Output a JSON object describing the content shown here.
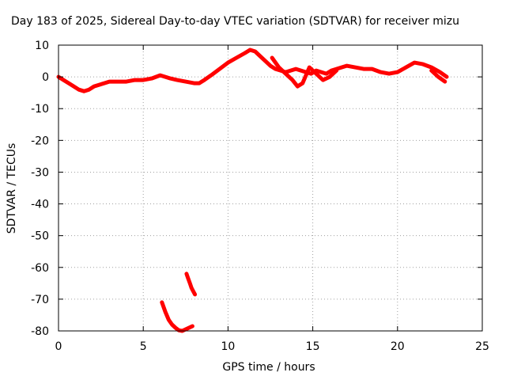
{
  "chart_data": {
    "type": "line",
    "title": "Day 183 of 2025, Sidereal Day-to-day VTEC variation (SDTVAR) for receiver mizu",
    "xlabel": "GPS time / hours",
    "ylabel": "SDTVAR / TECUs",
    "xlim": [
      0,
      25
    ],
    "ylim": [
      -80,
      10
    ],
    "xticks": [
      0,
      5,
      10,
      15,
      20,
      25
    ],
    "yticks": [
      10,
      0,
      -10,
      -20,
      -30,
      -40,
      -50,
      -60,
      -70,
      -80
    ],
    "grid": true,
    "series": [
      {
        "name": "main-trace",
        "color": "#ff0000",
        "x": [
          0.0,
          0.3,
          0.6,
          0.9,
          1.2,
          1.5,
          1.8,
          2.1,
          2.4,
          2.7,
          3.0,
          3.5,
          4.0,
          4.5,
          5.0,
          5.5,
          6.0,
          6.3,
          6.6,
          7.0,
          7.5,
          8.0,
          8.3,
          8.6,
          9.0,
          9.5,
          10.0,
          10.5,
          11.0,
          11.3,
          11.6,
          11.9,
          12.2,
          12.5,
          12.8,
          13.1,
          13.4,
          13.7,
          14.0,
          14.3,
          14.6,
          14.9,
          15.2,
          15.5,
          15.8,
          16.1,
          16.4,
          16.7,
          17.0,
          17.5,
          18.0,
          18.5,
          19.0,
          19.5,
          20.0,
          20.5,
          21.0,
          21.5,
          22.0,
          22.5,
          22.9
        ],
        "y": [
          0,
          -1,
          -2,
          -3,
          -4,
          -4.5,
          -4,
          -3,
          -2.5,
          -2,
          -1.5,
          -1.5,
          -1.5,
          -1,
          -1,
          -0.5,
          0.5,
          0,
          -0.5,
          -1,
          -1.5,
          -2,
          -2,
          -1,
          0.5,
          2.5,
          4.5,
          6,
          7.5,
          8.5,
          8,
          6.5,
          5,
          3.5,
          2.5,
          2,
          1.5,
          2,
          2.5,
          2,
          1.5,
          1,
          2,
          1.5,
          1,
          2,
          2.5,
          3,
          3.5,
          3,
          2.5,
          2.5,
          1.5,
          1,
          1.5,
          3,
          4.5,
          4,
          3,
          1.5,
          0
        ]
      },
      {
        "name": "upper-band",
        "color": "#ff0000",
        "x": [
          12.6,
          13.0,
          13.4,
          13.8,
          14.1,
          14.4,
          14.8,
          15.2,
          15.6,
          16.0,
          16.4
        ],
        "y": [
          6,
          3,
          1,
          -1,
          -3,
          -2,
          3,
          1,
          -1,
          0,
          2
        ]
      },
      {
        "name": "lower-band",
        "color": "#ff0000",
        "x": [
          22.0,
          22.4,
          22.8
        ],
        "y": [
          2,
          0,
          -1.5
        ]
      },
      {
        "name": "dip-arc",
        "color": "#ff0000",
        "x": [
          6.1,
          6.3,
          6.5,
          6.7,
          6.9,
          7.1,
          7.3,
          7.5,
          7.7,
          7.9
        ],
        "y": [
          -71,
          -74,
          -76.5,
          -78,
          -79,
          -79.8,
          -80,
          -79.5,
          -79,
          -78.5
        ]
      },
      {
        "name": "dip-segment",
        "color": "#ff0000",
        "x": [
          7.55,
          7.65,
          7.75,
          7.85,
          7.95,
          8.05
        ],
        "y": [
          -62,
          -63.5,
          -65,
          -66.5,
          -67.5,
          -68.5
        ]
      }
    ]
  }
}
